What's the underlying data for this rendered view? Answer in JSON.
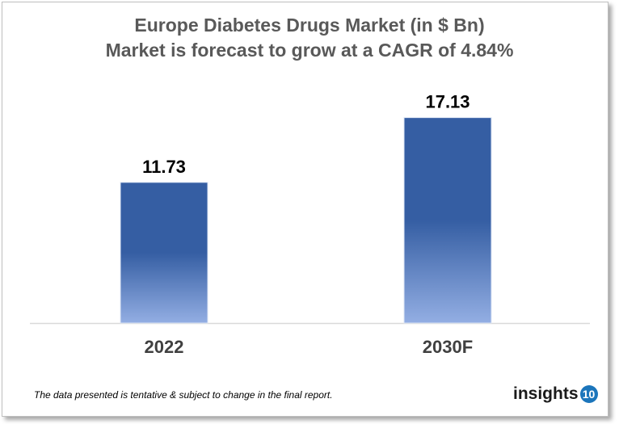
{
  "chart_data": {
    "type": "bar",
    "title": "Europe Diabetes Drugs Market (in $ Bn)",
    "subtitle": "Market is forecast to grow at a CAGR of 4.84%",
    "categories": [
      "2022",
      "2030F"
    ],
    "values": [
      11.73,
      17.13
    ],
    "data_labels": [
      "11.73",
      "17.13"
    ],
    "xlabel": "",
    "ylabel": "",
    "ylim": [
      0,
      20
    ],
    "grid": false,
    "colors": {
      "bar_top": "#355ea3",
      "bar_bottom": "#93aee3"
    }
  },
  "footer": {
    "note": "The data presented is tentative & subject to change in the final report.",
    "logo_text": "insights",
    "logo_badge": "10"
  }
}
